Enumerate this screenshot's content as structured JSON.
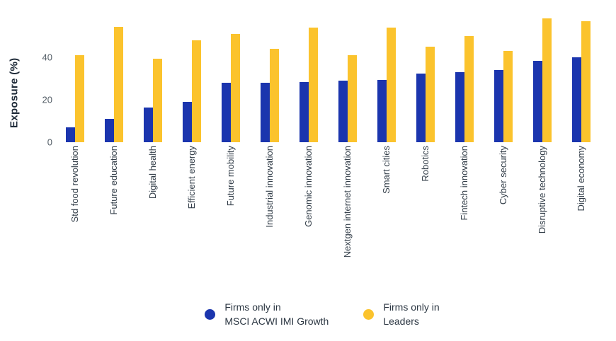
{
  "chart": {
    "y_axis_title": "Exposure (%)",
    "colors": {
      "growth_blue": "#1B35AE",
      "leaders_yellow": "#FBC32D",
      "tick_text": "#535D66",
      "label_text": "#333E49",
      "background": "#FFFFFF"
    }
  },
  "chart_data": {
    "type": "bar",
    "title": "",
    "xlabel": "",
    "ylabel": "Exposure (%)",
    "ylim": [
      0,
      62
    ],
    "y_ticks": [
      0,
      20,
      40
    ],
    "grid": false,
    "legend_position": "bottom",
    "categories": [
      "Std food revolution",
      "Future education",
      "Digital health",
      "Efficient energy",
      "Future mobility",
      "Industrial innovation",
      "Genomic innovation",
      "Nextgen internet innovation",
      "Smart cities",
      "Robotics",
      "Fintech innovation",
      "Cyber security",
      "Disruptive technology",
      "Digital economy"
    ],
    "series": [
      {
        "name": "Firms only in MSCI ACWI IMI Growth",
        "legend_lines": [
          "Firms only in",
          "MSCI ACWI IMI Growth"
        ],
        "color": "#1B35AE",
        "values": [
          7,
          11,
          16.5,
          19,
          28,
          28,
          28.5,
          29,
          29.5,
          32.5,
          33,
          34,
          38.5,
          40
        ]
      },
      {
        "name": "Firms only in Leaders",
        "legend_lines": [
          "Firms only in",
          "Leaders"
        ],
        "color": "#FBC32D",
        "values": [
          41,
          54.5,
          39.5,
          48,
          51,
          44,
          54,
          41,
          54,
          45,
          50,
          43,
          58.5,
          57
        ]
      }
    ]
  }
}
